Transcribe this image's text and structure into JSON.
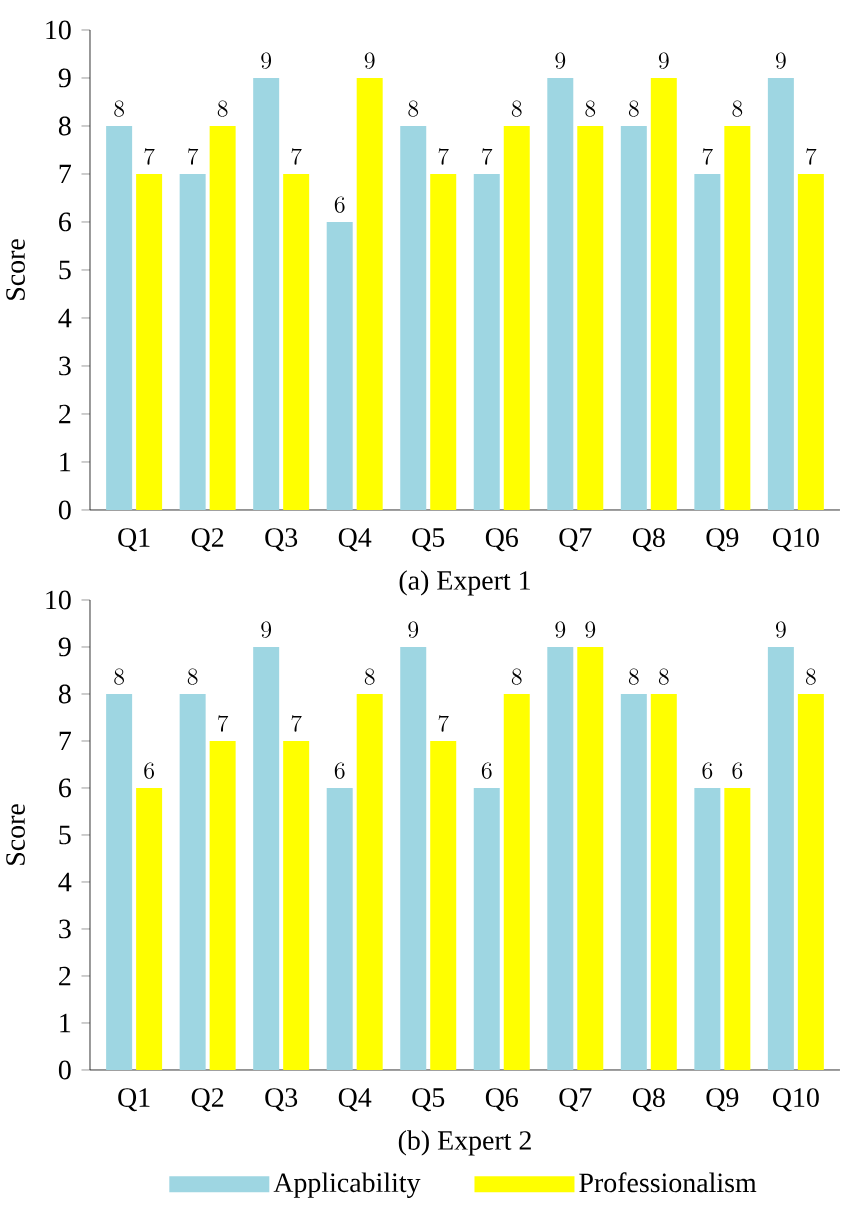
{
  "chart_data": [
    {
      "type": "bar",
      "xlabel": "(a) Expert 1",
      "ylabel": "Score",
      "categories": [
        "Q1",
        "Q2",
        "Q3",
        "Q4",
        "Q5",
        "Q6",
        "Q7",
        "Q8",
        "Q9",
        "Q10"
      ],
      "series": [
        {
          "color": "#9ed6e2",
          "values": [
            8,
            7,
            9,
            6,
            8,
            7,
            9,
            8,
            7,
            9
          ]
        },
        {
          "color": "#ffff00",
          "values": [
            7,
            8,
            7,
            9,
            7,
            8,
            8,
            9,
            8,
            7
          ]
        }
      ],
      "ylim": [
        0,
        10
      ],
      "yticks": [
        0,
        1,
        2,
        3,
        4,
        5,
        6,
        7,
        8,
        9,
        10
      ],
      "data_labels": true
    },
    {
      "type": "bar",
      "xlabel": "(b) Expert 2",
      "ylabel": "Score",
      "categories": [
        "Q1",
        "Q2",
        "Q3",
        "Q4",
        "Q5",
        "Q6",
        "Q7",
        "Q8",
        "Q9",
        "Q10"
      ],
      "series": [
        {
          "name": "Applicability",
          "color": "#9ed6e2",
          "values": [
            8,
            8,
            9,
            6,
            9,
            6,
            9,
            8,
            6,
            9
          ]
        },
        {
          "name": "Professionalism",
          "color": "#ffff00",
          "values": [
            6,
            7,
            7,
            8,
            7,
            8,
            9,
            8,
            6,
            8
          ]
        }
      ],
      "ylim": [
        0,
        10
      ],
      "yticks": [
        0,
        1,
        2,
        3,
        4,
        5,
        6,
        7,
        8,
        9,
        10
      ],
      "data_labels": true,
      "legend": "bottom"
    }
  ]
}
